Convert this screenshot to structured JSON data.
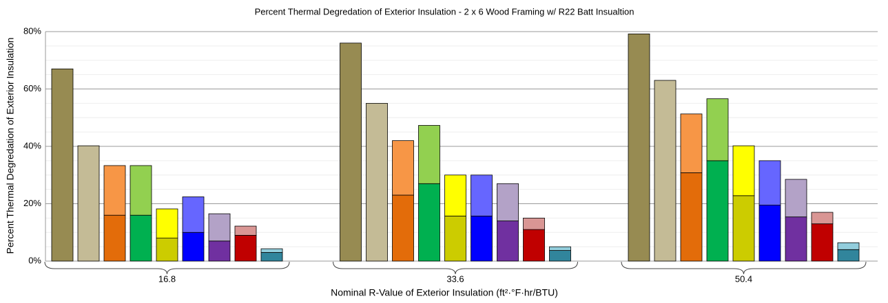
{
  "chart_data": {
    "type": "bar",
    "title": "Percent Thermal Degredation of Exterior Insulation - 2 x 6 Wood  Framing w/ R22 Batt Insualtion",
    "x_label": "Nominal R-Value of Exterior Insulation (ft²·°F·hr/BTU)",
    "y_label": "Percent Thermal Degredation of Exterior Insulation",
    "categories": [
      "16.8",
      "33.6",
      "50.4"
    ],
    "ylim": [
      0,
      80
    ],
    "yticks": [
      {
        "value": 0,
        "label": "0%"
      },
      {
        "value": 20,
        "label": "20%"
      },
      {
        "value": 40,
        "label": "40%"
      },
      {
        "value": 60,
        "label": "60%"
      },
      {
        "value": 80,
        "label": "80%"
      }
    ],
    "yminorticks": [
      5,
      10,
      15,
      25,
      30,
      35,
      45,
      50,
      55,
      65,
      70,
      75
    ],
    "grid": true,
    "series": [
      {
        "color": "#978b52",
        "values": [
          67,
          76,
          79.2
        ]
      },
      {
        "color": "#c4bb96",
        "values": [
          40.2,
          55,
          63
        ]
      },
      {
        "segments": [
          {
            "color": "#e36c0a",
            "values": [
              16,
              23,
              30.8
            ]
          },
          {
            "color": "#f79646",
            "values": [
              17.3,
              19,
              20.5
            ]
          }
        ]
      },
      {
        "segments": [
          {
            "color": "#00b050",
            "values": [
              16,
              27,
              35
            ]
          },
          {
            "color": "#92d050",
            "values": [
              17.3,
              20.3,
              21.6
            ]
          }
        ]
      },
      {
        "segments": [
          {
            "color": "#cccc00",
            "values": [
              8,
              15.7,
              22.8
            ]
          },
          {
            "color": "#ffff00",
            "values": [
              10.2,
              14.3,
              17.4
            ]
          }
        ]
      },
      {
        "segments": [
          {
            "color": "#0000ff",
            "values": [
              10,
              15.7,
              19.5
            ]
          },
          {
            "color": "#6666ff",
            "values": [
              12.4,
              14.3,
              15.5
            ]
          }
        ]
      },
      {
        "segments": [
          {
            "color": "#7030a0",
            "values": [
              7,
              14,
              15.4
            ]
          },
          {
            "color": "#b3a2c7",
            "values": [
              9.5,
              13,
              13.1
            ]
          }
        ]
      },
      {
        "segments": [
          {
            "color": "#c00000",
            "values": [
              9,
              11,
              13
            ]
          },
          {
            "color": "#d99694",
            "values": [
              3.2,
              4,
              4
            ]
          }
        ]
      },
      {
        "segments": [
          {
            "color": "#31859c",
            "values": [
              3,
              3.7,
              4
            ]
          },
          {
            "color": "#92cddc",
            "values": [
              1.3,
              1.3,
              2.4
            ]
          }
        ]
      }
    ]
  }
}
